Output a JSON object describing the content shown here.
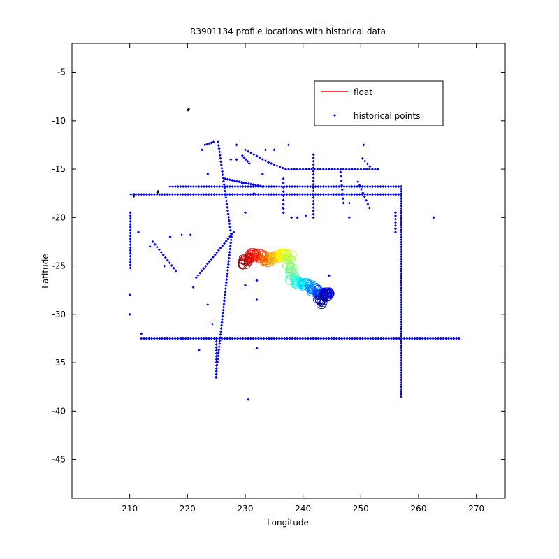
{
  "chart_data": {
    "type": "scatter",
    "title": "R3901134 profile locations with historical data",
    "xlabel": "Longitude",
    "ylabel": "Latitude",
    "xlim": [
      200,
      275
    ],
    "ylim": [
      -49,
      -2
    ],
    "xticks": [
      210,
      220,
      230,
      240,
      250,
      260,
      270
    ],
    "yticks": [
      -5,
      -10,
      -15,
      -20,
      -25,
      -30,
      -35,
      -40,
      -45
    ],
    "grid": false,
    "legend": {
      "position": "top-right",
      "entries": [
        "float",
        "historical points"
      ]
    },
    "colors": {
      "float": "#ff0000",
      "historical": "#0000ff",
      "black": "#000000",
      "axes": "#000000"
    },
    "series": [
      {
        "name": "historical points",
        "segments": [
          {
            "from": [
              210.2,
              -17.6
            ],
            "to": [
              257,
              -17.6
            ],
            "step": 0.45
          },
          {
            "from": [
              217,
              -16.8
            ],
            "to": [
              257,
              -16.8
            ],
            "step": 0.45
          },
          {
            "from": [
              212,
              -32.5
            ],
            "to": [
              267,
              -32.5
            ],
            "step": 0.45
          },
          {
            "from": [
              257,
              -16.8
            ],
            "to": [
              257,
              -38.5
            ],
            "step": 0.25
          },
          {
            "from": [
              210.1,
              -19.5
            ],
            "to": [
              210.1,
              -25.2
            ],
            "step": 0.3
          },
          {
            "from": [
              225.3,
              -12.2
            ],
            "to": [
              227.6,
              -22
            ],
            "step": 0.35
          },
          {
            "from": [
              227.6,
              -22
            ],
            "to": [
              224.9,
              -36.5
            ],
            "step": 0.32
          },
          {
            "from": [
              225,
              -32.5
            ],
            "to": [
              225,
              -36.5
            ],
            "step": 0.3
          },
          {
            "from": [
              230,
              -13
            ],
            "to": [
              234,
              -14.3
            ],
            "step": 0.5
          },
          {
            "from": [
              234,
              -14.3
            ],
            "to": [
              237,
              -15
            ],
            "step": 0.5
          },
          {
            "from": [
              237,
              -15
            ],
            "to": [
              253,
              -15
            ],
            "step": 0.5
          },
          {
            "from": [
              226.5,
              -16
            ],
            "to": [
              233,
              -16.8
            ],
            "step": 0.4
          },
          {
            "from": [
              241.8,
              -13.5
            ],
            "to": [
              241.8,
              -20
            ],
            "step": 0.35
          },
          {
            "from": [
              221.5,
              -26.2
            ],
            "to": [
              228,
              -21.5
            ],
            "step": 0.4
          },
          {
            "from": [
              214,
              -22.5
            ],
            "to": [
              218,
              -25.5
            ],
            "step": 0.45
          },
          {
            "from": [
              256,
              -19.5
            ],
            "to": [
              256,
              -21.5
            ],
            "step": 0.35
          },
          {
            "from": [
              249.5,
              -16.3
            ],
            "to": [
              251.5,
              -19
            ],
            "step": 0.45
          },
          {
            "from": [
              250.3,
              -13.9
            ],
            "to": [
              252,
              -15
            ],
            "step": 0.45
          },
          {
            "from": [
              236.6,
              -16
            ],
            "to": [
              236.6,
              -19.5
            ],
            "step": 0.45
          },
          {
            "from": [
              229.5,
              -13.6
            ],
            "to": [
              230.7,
              -14.4
            ],
            "step": 0.4
          },
          {
            "from": [
              246.5,
              -15.3
            ],
            "to": [
              247,
              -18.5
            ],
            "step": 0.45
          },
          {
            "from": [
              223,
              -12.5
            ],
            "to": [
              224.5,
              -12.2
            ],
            "step": 0.4
          }
        ],
        "points": [
          [
            210,
            -28
          ],
          [
            210,
            -30
          ],
          [
            212,
            -32
          ],
          [
            211.5,
            -21.5
          ],
          [
            213.5,
            -23
          ],
          [
            216,
            -25
          ],
          [
            219,
            -32.5
          ],
          [
            222,
            -33.7
          ],
          [
            223.5,
            -29
          ],
          [
            224.3,
            -31
          ],
          [
            221,
            -27.2
          ],
          [
            219,
            -21.8
          ],
          [
            220.5,
            -21.8
          ],
          [
            217,
            -22
          ],
          [
            235,
            -13
          ],
          [
            237.5,
            -12.5
          ],
          [
            236.5,
            -19
          ],
          [
            239,
            -20
          ],
          [
            240.5,
            -19.8
          ],
          [
            238,
            -20
          ],
          [
            230,
            -19.5
          ],
          [
            229.5,
            -16.5
          ],
          [
            232,
            -26.5
          ],
          [
            232,
            -28.5
          ],
          [
            230.5,
            -38.8
          ],
          [
            232,
            -33.5
          ],
          [
            244.5,
            -26
          ],
          [
            248,
            -18.5
          ],
          [
            248,
            -20
          ],
          [
            250.5,
            -12.5
          ],
          [
            262.6,
            -20
          ],
          [
            227.5,
            -14
          ],
          [
            222.5,
            -13
          ],
          [
            223.5,
            -15.5
          ],
          [
            228.5,
            -14
          ],
          [
            231.5,
            -17.5
          ],
          [
            230,
            -27
          ],
          [
            233.5,
            -13
          ],
          [
            228.5,
            -12.5
          ],
          [
            233,
            -15.5
          ]
        ]
      },
      {
        "name": "",
        "color": "black",
        "points": [
          [
            220.1,
            -8.9
          ],
          [
            220.2,
            -8.8
          ],
          [
            210.8,
            -17.6
          ],
          [
            210.7,
            -17.8
          ],
          [
            214.8,
            -17.4
          ],
          [
            214.9,
            -17.3
          ]
        ]
      },
      {
        "name": "float",
        "path": [
          [
            229.5,
            -24.8
          ],
          [
            230.5,
            -24.2
          ],
          [
            231.5,
            -23.8
          ],
          [
            232.5,
            -24
          ],
          [
            233.5,
            -24.4
          ],
          [
            234.5,
            -24.1
          ],
          [
            235.5,
            -24
          ],
          [
            236.5,
            -23.8
          ],
          [
            237.5,
            -24
          ],
          [
            237.8,
            -25.2
          ],
          [
            238.3,
            -26.3
          ],
          [
            239.3,
            -26.8
          ],
          [
            240.5,
            -26.9
          ],
          [
            241.5,
            -27.3
          ],
          [
            242.5,
            -27.8
          ],
          [
            243.5,
            -27.8
          ],
          [
            244.5,
            -27.7
          ],
          [
            243.3,
            -28.4
          ],
          [
            243,
            -29
          ]
        ]
      }
    ]
  }
}
